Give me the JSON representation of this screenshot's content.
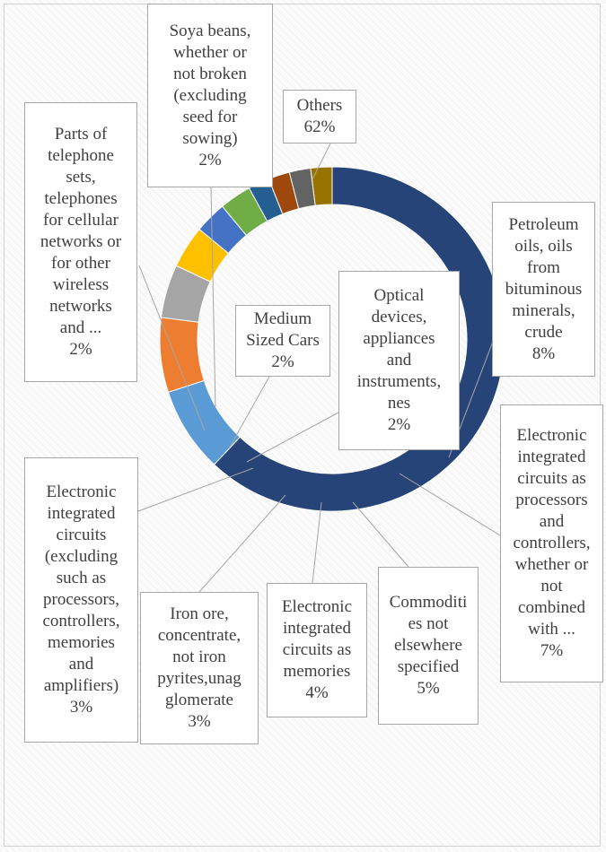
{
  "chart_data": {
    "type": "donut",
    "title": "",
    "legend": "none",
    "slices": [
      {
        "label": "Others",
        "value": 62,
        "value_label": "62%",
        "color": "#264478"
      },
      {
        "label": "Petroleum oils, oils from bituminous minerals, crude",
        "value": 8,
        "value_label": "8%",
        "color": "#5b9bd5"
      },
      {
        "label": "Electronic integrated circuits as processors and controllers, whether or not combined with ...",
        "value": 7,
        "value_label": "7%",
        "color": "#ed7d31"
      },
      {
        "label": "Commodities not elsewhere specified",
        "value": 5,
        "value_label": "5%",
        "color": "#a5a5a5"
      },
      {
        "label": "Electronic integrated circuits as memories",
        "value": 4,
        "value_label": "4%",
        "color": "#ffc000"
      },
      {
        "label": "Iron ore, concentrate, not iron pyrites,unagglomerate",
        "value": 3,
        "value_label": "3%",
        "color": "#4472c4"
      },
      {
        "label": "Electronic integrated circuits (excluding such as processors, controllers, memories and amplifiers)",
        "value": 3,
        "value_label": "3%",
        "color": "#70ad47"
      },
      {
        "label": "Optical devices, appliances and instruments, nes",
        "value": 2,
        "value_label": "2%",
        "color": "#255e91"
      },
      {
        "label": "Medium Sized Cars",
        "value": 2,
        "value_label": "2%",
        "color": "#9e480e"
      },
      {
        "label": "Parts of telephone sets, telephones for cellular networks or for other wireless networks and ...",
        "value": 2,
        "value_label": "2%",
        "color": "#636363"
      },
      {
        "label": "Soya beans, whether or not broken (excluding seed for sowing)",
        "value": 2,
        "value_label": "2%",
        "color": "#997300"
      }
    ]
  },
  "callouts": [
    {
      "text": "Soya beans,\nwhether or\nnot broken\n(excluding\nseed for\nsowing)",
      "pct": "2%"
    },
    {
      "text": "Parts of\ntelephone\nsets,\ntelephones\nfor cellular\nnetworks or\nfor other\nwireless\nnetworks\nand ...",
      "pct": "2%"
    },
    {
      "text": "Others",
      "pct": "62%"
    },
    {
      "text": "Petroleum\noils, oils\nfrom\nbituminous\nminerals,\ncrude",
      "pct": "8%"
    },
    {
      "text": "Medium\nSized Cars",
      "pct": "2%"
    },
    {
      "text": "Optical\ndevices,\nappliances\nand\ninstruments,\nnes",
      "pct": "2%"
    },
    {
      "text": "Electronic\nintegrated\ncircuits as\nprocessors\nand\ncontrollers,\nwhether or\nnot\ncombined\nwith ...",
      "pct": "7%"
    },
    {
      "text": "Electronic\nintegrated\ncircuits\n(excluding\nsuch as\nprocessors,\ncontrollers,\nmemories\nand\namplifiers)",
      "pct": "3%"
    },
    {
      "text": "Iron ore,\nconcentrate,\nnot iron\npyrites,unag\nglomerate",
      "pct": "3%"
    },
    {
      "text": "Electronic\nintegrated\ncircuits as\nmemories",
      "pct": "4%"
    },
    {
      "text": "Commoditi\nes not\nelsewhere\nspecified",
      "pct": "5%"
    }
  ]
}
